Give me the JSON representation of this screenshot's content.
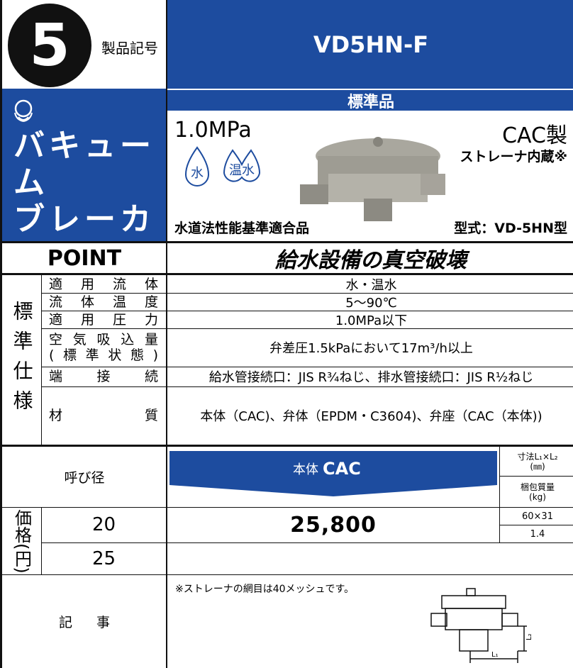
{
  "header": {
    "number": "5",
    "product_code_label": "製品記号",
    "product_code": "VD5HN-F",
    "category": "標準品",
    "product_name_lines": [
      "バキューム",
      "ブレーカ"
    ]
  },
  "product": {
    "pressure": "1.0MPa",
    "media_icons": [
      "水",
      "温水"
    ],
    "material": "CAC製",
    "feature": "ストレーナ内蔵※",
    "certification": "水道法性能基準適合品",
    "model": "型式：VD-5HN型"
  },
  "point": {
    "label": "POINT",
    "text": "給水設備の真空破壊"
  },
  "spec": {
    "group_label": "標準仕様",
    "rows": [
      {
        "label": [
          "適用流体"
        ],
        "value": "水・温水"
      },
      {
        "label": [
          "流体温度"
        ],
        "value": "5～90℃"
      },
      {
        "label": [
          "適用圧力"
        ],
        "value": "1.0MPa以下"
      },
      {
        "label": [
          "空気吸込量",
          "(標準状態)"
        ],
        "value": "弁差圧1.5kPaにおいて17m³/h以上"
      },
      {
        "label": [
          "端接続"
        ],
        "value": "給水管接続口：JIS R¾ねじ、排水管接続口：JIS R½ねじ"
      },
      {
        "label": [
          "材質"
        ],
        "value": "本体（CAC)、弁体（EPDM・C3604)、弁座（CAC（本体))"
      }
    ]
  },
  "price": {
    "side_label": "価格(円)",
    "size_header": "呼び径",
    "body_label": "本体",
    "body_material": "CAC",
    "dimension_header": [
      "寸法L₁×L₂",
      "(㎜)"
    ],
    "weight_header": [
      "梱包質量",
      "(kg)"
    ],
    "rows": [
      {
        "size": "20",
        "price": "25,800",
        "dimensions": "60×31",
        "weight": "1.4"
      },
      {
        "size": "25"
      }
    ]
  },
  "notes": {
    "label": "記事",
    "text": "※ストレーナの網目は40メッシュです。",
    "diagram_labels": [
      "L₂",
      "L₁"
    ]
  }
}
